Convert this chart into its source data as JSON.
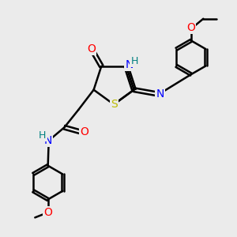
{
  "background_color": "#ebebeb",
  "bond_color": "#000000",
  "bond_width": 1.8,
  "atom_colors": {
    "O": "#ff0000",
    "N": "#0000ff",
    "S": "#bbbb00",
    "H": "#008080",
    "C": "#000000"
  },
  "font_size": 10,
  "figsize": [
    3.0,
    3.0
  ],
  "dpi": 100
}
